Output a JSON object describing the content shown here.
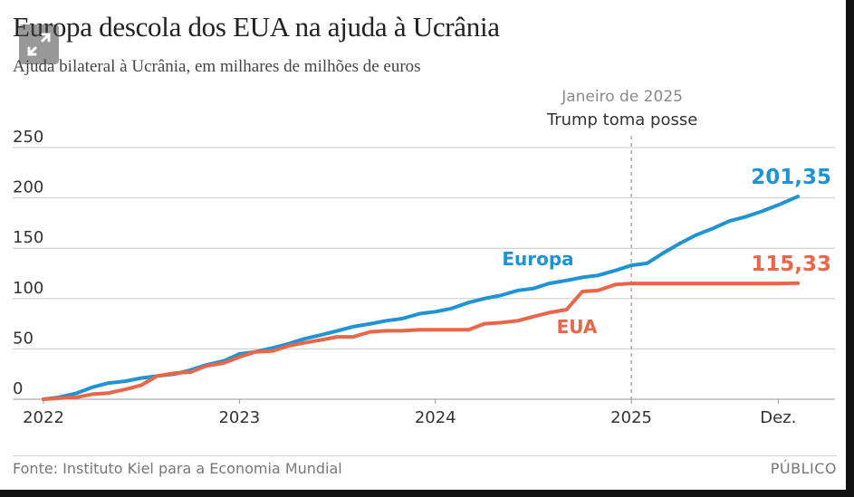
{
  "header": {
    "title": "Europa descola dos EUA na ajuda à Ucrânia",
    "subtitle": "Ajuda bilateral à Ucrânia, em milhares de milhões de euros"
  },
  "annotation": {
    "date": "Janeiro de 2025",
    "event": "Trump toma posse"
  },
  "footer": {
    "source": "Fonte: Instituto Kiel para a Economia Mundial",
    "brand": "PÚBLICO"
  },
  "colors": {
    "europa": "#1f93d3",
    "eua": "#e8664a",
    "grid": "#c8c8c8",
    "text": "#333333"
  },
  "chart_data": {
    "type": "line",
    "title": "Europa descola dos EUA na ajuda à Ucrânia",
    "subtitle": "Ajuda bilateral à Ucrânia, em milhares de milhões de euros",
    "xlim": [
      2022.0,
      2025.85
    ],
    "ylim": [
      0,
      250
    ],
    "yticks": [
      0,
      50,
      100,
      150,
      200,
      250
    ],
    "xticks": [
      {
        "value": 2022,
        "label": "2022"
      },
      {
        "value": 2023,
        "label": "2023"
      },
      {
        "value": 2024,
        "label": "2024"
      },
      {
        "value": 2025,
        "label": "2025"
      },
      {
        "value": 2025.75,
        "label": "Dez."
      }
    ],
    "grid": true,
    "vline": {
      "x": 2025.0
    },
    "series": [
      {
        "name": "Europa",
        "end_label": "201,35",
        "x": [
          2022.0,
          2022.08,
          2022.17,
          2022.25,
          2022.33,
          2022.42,
          2022.5,
          2022.58,
          2022.67,
          2022.75,
          2022.83,
          2022.92,
          2023.0,
          2023.08,
          2023.17,
          2023.25,
          2023.33,
          2023.42,
          2023.5,
          2023.58,
          2023.67,
          2023.75,
          2023.83,
          2023.92,
          2024.0,
          2024.08,
          2024.17,
          2024.25,
          2024.33,
          2024.42,
          2024.5,
          2024.58,
          2024.67,
          2024.75,
          2024.83,
          2024.92,
          2025.0,
          2025.08,
          2025.17,
          2025.25,
          2025.33,
          2025.42,
          2025.5,
          2025.58,
          2025.67,
          2025.75,
          2025.85
        ],
        "values": [
          0,
          2,
          6,
          12,
          16,
          18,
          21,
          23,
          25,
          29,
          34,
          38,
          45,
          47,
          51,
          55,
          60,
          64,
          68,
          72,
          75,
          78,
          80,
          85,
          87,
          90,
          96,
          100,
          103,
          108,
          110,
          115,
          118,
          121,
          123,
          128,
          133,
          135,
          146,
          155,
          163,
          170,
          177,
          181,
          187,
          193,
          201.35
        ]
      },
      {
        "name": "EUA",
        "end_label": "115,33",
        "x": [
          2022.0,
          2022.08,
          2022.17,
          2022.25,
          2022.33,
          2022.42,
          2022.5,
          2022.58,
          2022.67,
          2022.75,
          2022.83,
          2022.92,
          2023.0,
          2023.08,
          2023.17,
          2023.25,
          2023.33,
          2023.42,
          2023.5,
          2023.58,
          2023.67,
          2023.75,
          2023.83,
          2023.92,
          2024.0,
          2024.08,
          2024.17,
          2024.25,
          2024.33,
          2024.42,
          2024.5,
          2024.58,
          2024.67,
          2024.75,
          2024.83,
          2024.92,
          2025.0,
          2025.08,
          2025.17,
          2025.25,
          2025.33,
          2025.42,
          2025.5,
          2025.58,
          2025.67,
          2025.75,
          2025.85
        ],
        "values": [
          0,
          1,
          2,
          5,
          6,
          10,
          14,
          23,
          26,
          27,
          33,
          36,
          42,
          47,
          48,
          53,
          56,
          59,
          62,
          62,
          67,
          68,
          68,
          69,
          69,
          69,
          69,
          75,
          76,
          78,
          82,
          86,
          89,
          107,
          108,
          114,
          115,
          115,
          115,
          115,
          115,
          115,
          115,
          115,
          115,
          115,
          115.33
        ]
      }
    ]
  }
}
